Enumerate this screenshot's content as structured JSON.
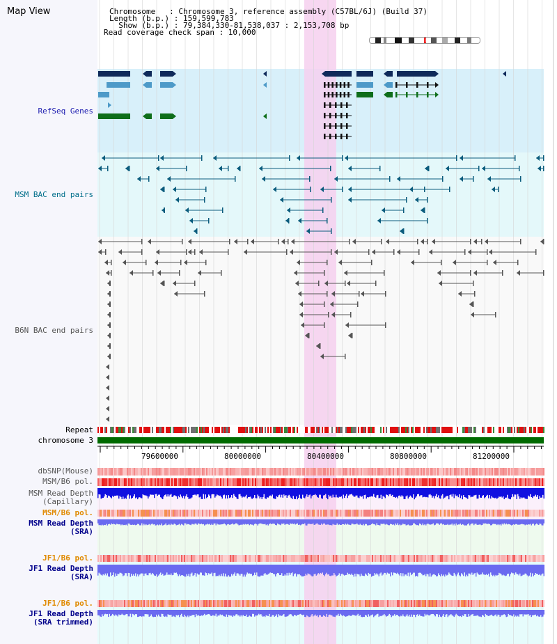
{
  "header": {
    "title": "Map View",
    "chromosome_line": "Chromosome   : Chromosome 3, reference assembly (C57BL/6J) (Build 37)",
    "length_line": "Length (b.p.) : 159,599,783",
    "show_line": "  Show (b.p.) : 79,384,330-81,538,037 : 2,153,708 bp",
    "coverage_line": "Read coverage check span : 10,000"
  },
  "tracks": {
    "refseq": "RefSeq Genes",
    "msm_bac": "MSM BAC end pairs",
    "b6n_bac": "B6N BAC end pairs",
    "repeat": "Repeat",
    "chromosome": "chromosome 3",
    "dbsnp": "dbSNP(Mouse)",
    "msm_b6_pol_1": "MSM/B6 pol.",
    "msm_read_depth_cap_1": "MSM Read Depth",
    "msm_read_depth_cap_2": "(Capillary)",
    "msm_b6_pol_2": "MSM/B6 pol.",
    "msm_read_depth_sra_1": "MSM Read Depth",
    "msm_read_depth_sra_2": "(SRA)",
    "jf1_b6_pol_1": "JF1/B6 pol.",
    "jf1_read_depth_sra_1": "JF1 Read Depth",
    "jf1_read_depth_sra_2": "(SRA)",
    "jf1_b6_pol_2": "JF1/B6 pol.",
    "jf1_read_depth_trim_1": "JF1 Read Depth",
    "jf1_read_depth_trim_2": "(SRA trimmed)"
  },
  "axis": {
    "ticks": [
      "79600000",
      "80000000",
      "80400000",
      "80800000",
      "81200000"
    ]
  },
  "colors": {
    "refseq_bg": "#d8f0fa",
    "msm_bg": "#e4f8fa",
    "highlight": "#f6d0ee",
    "gene_dark": "#0f2a5a",
    "gene_light": "#4d9ac8",
    "gene_green": "#0e6e1a",
    "msm_pair": "#0b5c7d",
    "b6n_pair": "#555555",
    "chromosome_bar": "#006a00",
    "read_depth_blue": "#1010e0",
    "read_depth_light": "#6a6af0",
    "orange_label": "#e08a00",
    "navy_label": "#00008b"
  }
}
